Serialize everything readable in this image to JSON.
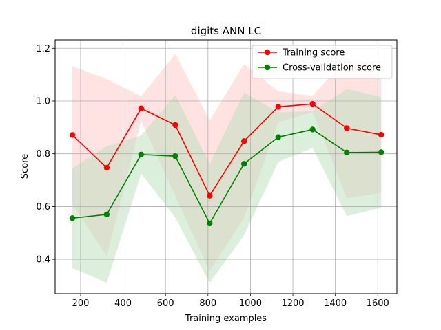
{
  "chart_data": {
    "type": "line",
    "title": "digits ANN LC",
    "xlabel": "Training examples",
    "ylabel": "Score",
    "xlim": [
      80,
      1690
    ],
    "ylim": [
      0.27,
      1.232
    ],
    "xticks": [
      200,
      400,
      600,
      800,
      1000,
      1200,
      1400,
      1600
    ],
    "yticks": [
      0.4,
      0.6,
      0.8,
      1.0,
      1.2
    ],
    "xtick_labels": [
      "200",
      "400",
      "600",
      "800",
      "1000",
      "1200",
      "1400",
      "1600"
    ],
    "ytick_labels": [
      "0.4",
      "0.6",
      "0.8",
      "1.0",
      "1.2"
    ],
    "grid": true,
    "legend_position": "top-right",
    "x": [
      161,
      323,
      485,
      646,
      808,
      970,
      1131,
      1293,
      1454,
      1616
    ],
    "series": [
      {
        "name": "Training score",
        "color": "#ff0000",
        "band_color": "#ffcccc",
        "values": [
          0.871,
          0.747,
          0.972,
          0.909,
          0.641,
          0.848,
          0.978,
          0.989,
          0.897,
          0.872
        ],
        "upper": [
          1.133,
          1.083,
          1.018,
          1.179,
          0.926,
          1.14,
          1.037,
          1.02,
          1.163,
          1.092
        ],
        "lower": [
          0.609,
          0.411,
          0.926,
          0.639,
          0.356,
          0.556,
          0.919,
          0.958,
          0.631,
          0.652
        ]
      },
      {
        "name": "Cross-validation score",
        "color": "#008000",
        "band_color": "#c0e0c0",
        "values": [
          0.556,
          0.57,
          0.797,
          0.791,
          0.536,
          0.762,
          0.863,
          0.892,
          0.805,
          0.806
        ],
        "upper": [
          0.745,
          0.829,
          0.869,
          1.024,
          0.761,
          1.033,
          0.957,
          0.962,
          1.046,
          1.016
        ],
        "lower": [
          0.367,
          0.311,
          0.725,
          0.558,
          0.311,
          0.491,
          0.769,
          0.822,
          0.564,
          0.596
        ]
      }
    ]
  }
}
